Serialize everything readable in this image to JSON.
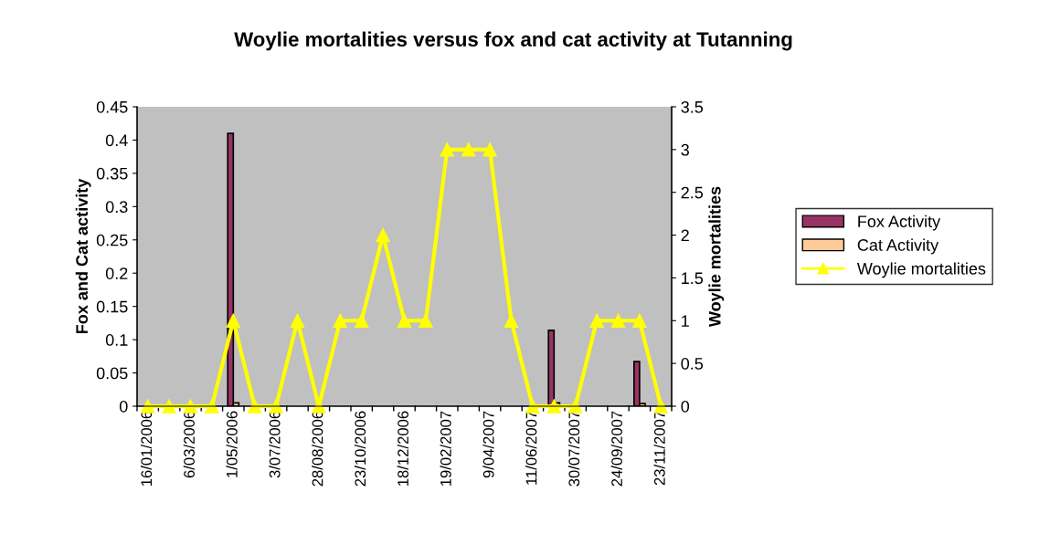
{
  "chart_data": {
    "type": "bar",
    "title": "Woylie mortalities versus fox and cat activity at Tutanning",
    "categories": [
      "16/01/2006",
      null,
      "6/03/2006",
      null,
      "1/05/2006",
      null,
      "3/07/2006",
      null,
      "28/08/2006",
      null,
      "23/10/2006",
      null,
      "18/12/2006",
      null,
      "19/02/2007",
      null,
      "9/04/2007",
      null,
      "11/06/2007",
      null,
      "30/07/2007",
      null,
      "24/09/2007",
      null,
      "23/11/2007"
    ],
    "series": [
      {
        "name": "Fox Activity",
        "color": "#993366",
        "values": [
          0,
          0,
          0,
          0,
          0.41,
          0,
          0,
          0,
          0,
          0,
          0,
          0,
          0,
          0,
          0,
          0,
          0,
          0,
          0,
          0.114,
          0,
          0,
          0,
          0.067,
          0
        ]
      },
      {
        "name": "Cat Activity",
        "color": "#ffcc99",
        "values": [
          0,
          0,
          0,
          0,
          0.005,
          0,
          0,
          0,
          0,
          0,
          0,
          0,
          0,
          0,
          0,
          0,
          0,
          0,
          0,
          0.005,
          0,
          0,
          0,
          0.004,
          0
        ]
      },
      {
        "name": "Woylie mortalities",
        "type": "line",
        "axis": "y2",
        "color": "#ffff00",
        "marker": "triangle",
        "values": [
          0,
          0,
          0,
          0,
          1,
          0,
          0,
          1,
          0,
          1,
          1,
          2,
          1,
          1,
          3,
          3,
          3,
          1,
          0,
          0,
          0,
          1,
          1,
          1,
          0
        ]
      }
    ],
    "ylabel": "Fox and Cat activity",
    "y2label": "Woylie mortalities",
    "ylim": [
      0,
      0.45
    ],
    "yticks": [
      0,
      0.05,
      0.1,
      0.15,
      0.2,
      0.25,
      0.3,
      0.35,
      0.4,
      0.45
    ],
    "y2lim": [
      0,
      3.5
    ],
    "y2ticks": [
      0,
      0.5,
      1,
      1.5,
      2,
      2.5,
      3,
      3.5
    ],
    "grid": false,
    "legend": "right"
  }
}
